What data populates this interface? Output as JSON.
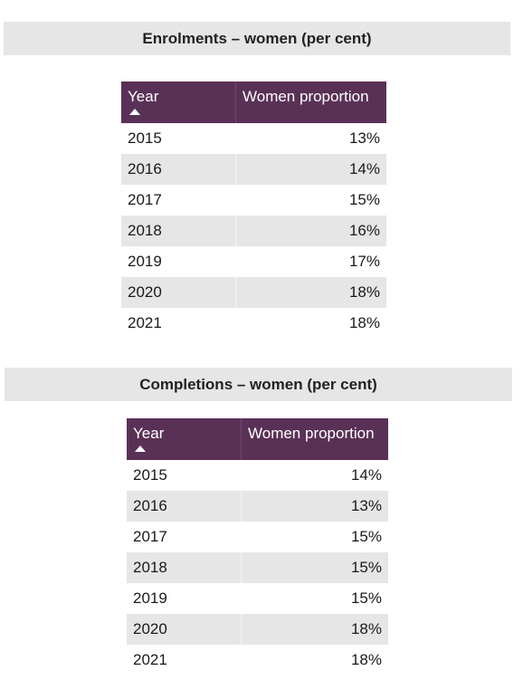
{
  "enrolments": {
    "title": "Enrolments – women (per cent)",
    "columns": [
      "Year",
      "Women proportion"
    ],
    "rows": [
      {
        "year": "2015",
        "value": "13%"
      },
      {
        "year": "2016",
        "value": "14%"
      },
      {
        "year": "2017",
        "value": "15%"
      },
      {
        "year": "2018",
        "value": "16%"
      },
      {
        "year": "2019",
        "value": "17%"
      },
      {
        "year": "2020",
        "value": "18%"
      },
      {
        "year": "2021",
        "value": "18%"
      }
    ]
  },
  "completions": {
    "title": "Completions – women (per cent)",
    "columns": [
      "Year",
      "Women proportion"
    ],
    "rows": [
      {
        "year": "2015",
        "value": "14%"
      },
      {
        "year": "2016",
        "value": "13%"
      },
      {
        "year": "2017",
        "value": "15%"
      },
      {
        "year": "2018",
        "value": "15%"
      },
      {
        "year": "2019",
        "value": "15%"
      },
      {
        "year": "2020",
        "value": "18%"
      },
      {
        "year": "2021",
        "value": "18%"
      }
    ]
  },
  "colors": {
    "header_bg": "#5a3156",
    "section_bg": "#e6e6e6",
    "stripe_bg": "#e6e6e6"
  },
  "icons": {
    "sort": "sort-up-icon"
  }
}
